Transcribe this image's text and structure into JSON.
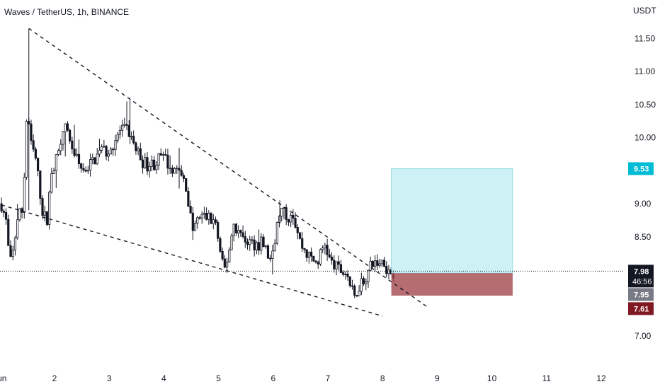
{
  "header": {
    "title": "Waves / TetherUS, 1h, BINANCE"
  },
  "axis": {
    "currency": "USDT"
  },
  "chart_data": {
    "type": "candlestick",
    "title": "Waves / TetherUS, 1h, BINANCE",
    "ylabel": "USDT",
    "ylim": [
      6.75,
      11.85
    ],
    "yticks": [
      "7.00",
      "8.50",
      "9.00",
      "10.00",
      "10.50",
      "11.00",
      "11.50"
    ],
    "x_ticks": [
      "Jun",
      "2",
      "3",
      "4",
      "5",
      "6",
      "7",
      "8",
      "9",
      "10",
      "11",
      "12"
    ],
    "x_tick_days": [
      1,
      2,
      3,
      4,
      5,
      6,
      7,
      8,
      9,
      10,
      11,
      12
    ],
    "xlim_days": [
      1.03,
      12.65
    ],
    "last_day": 8.2,
    "price_path": [
      [
        1.03,
        9.0
      ],
      [
        1.12,
        8.7
      ],
      [
        1.18,
        8.05
      ],
      [
        1.25,
        8.3
      ],
      [
        1.32,
        8.8
      ],
      [
        1.42,
        8.9
      ],
      [
        1.5,
        10.5
      ],
      [
        1.56,
        9.9
      ],
      [
        1.65,
        9.7
      ],
      [
        1.78,
        8.9
      ],
      [
        1.86,
        8.7
      ],
      [
        1.94,
        9.5
      ],
      [
        2.06,
        9.7
      ],
      [
        2.15,
        10.2
      ],
      [
        2.27,
        10.0
      ],
      [
        2.38,
        9.7
      ],
      [
        2.52,
        9.5
      ],
      [
        2.66,
        9.6
      ],
      [
        2.85,
        9.8
      ],
      [
        3.0,
        9.8
      ],
      [
        3.2,
        10.1
      ],
      [
        3.35,
        10.1
      ],
      [
        3.5,
        9.8
      ],
      [
        3.65,
        9.6
      ],
      [
        3.8,
        9.6
      ],
      [
        3.95,
        9.7
      ],
      [
        4.1,
        9.6
      ],
      [
        4.25,
        9.5
      ],
      [
        4.4,
        9.3
      ],
      [
        4.52,
        8.6
      ],
      [
        4.66,
        8.8
      ],
      [
        4.8,
        8.8
      ],
      [
        4.95,
        8.7
      ],
      [
        5.05,
        8.1
      ],
      [
        5.12,
        8.0
      ],
      [
        5.28,
        8.7
      ],
      [
        5.42,
        8.5
      ],
      [
        5.6,
        8.4
      ],
      [
        5.8,
        8.4
      ],
      [
        5.97,
        8.1
      ],
      [
        6.12,
        8.9
      ],
      [
        6.25,
        8.8
      ],
      [
        6.35,
        8.9
      ],
      [
        6.5,
        8.4
      ],
      [
        6.65,
        8.2
      ],
      [
        6.8,
        8.1
      ],
      [
        6.95,
        8.4
      ],
      [
        7.05,
        8.1
      ],
      [
        7.2,
        8.0
      ],
      [
        7.35,
        7.95
      ],
      [
        7.48,
        7.55
      ],
      [
        7.58,
        7.8
      ],
      [
        7.7,
        7.9
      ],
      [
        7.82,
        8.1
      ],
      [
        7.92,
        8.1
      ],
      [
        8.02,
        8.15
      ],
      [
        8.12,
        7.95
      ],
      [
        8.2,
        7.98
      ]
    ],
    "trendlines": [
      {
        "style": "dashed",
        "from": [
          1.53,
          11.65
        ],
        "to": [
          8.8,
          7.45
        ]
      },
      {
        "style": "dashed",
        "from": [
          1.03,
          8.98
        ],
        "to": [
          8.0,
          7.3
        ]
      }
    ],
    "position": {
      "x_start_day": 8.16,
      "x_end_day": 10.38,
      "entry": 7.95,
      "target": 9.53,
      "stop": 7.61,
      "profit_color": "#b2eaee",
      "loss_color": "#a4484f"
    },
    "price_labels": [
      {
        "value": "9.53",
        "color": "#00bcd4"
      },
      {
        "value": "7.98",
        "countdown": "46:56",
        "color": "#131722"
      },
      {
        "value": "7.95",
        "color": "#787b86"
      },
      {
        "value": "7.61",
        "color": "#801922"
      }
    ],
    "current_price": 7.98,
    "grid": false,
    "candle_color": "#131722"
  }
}
